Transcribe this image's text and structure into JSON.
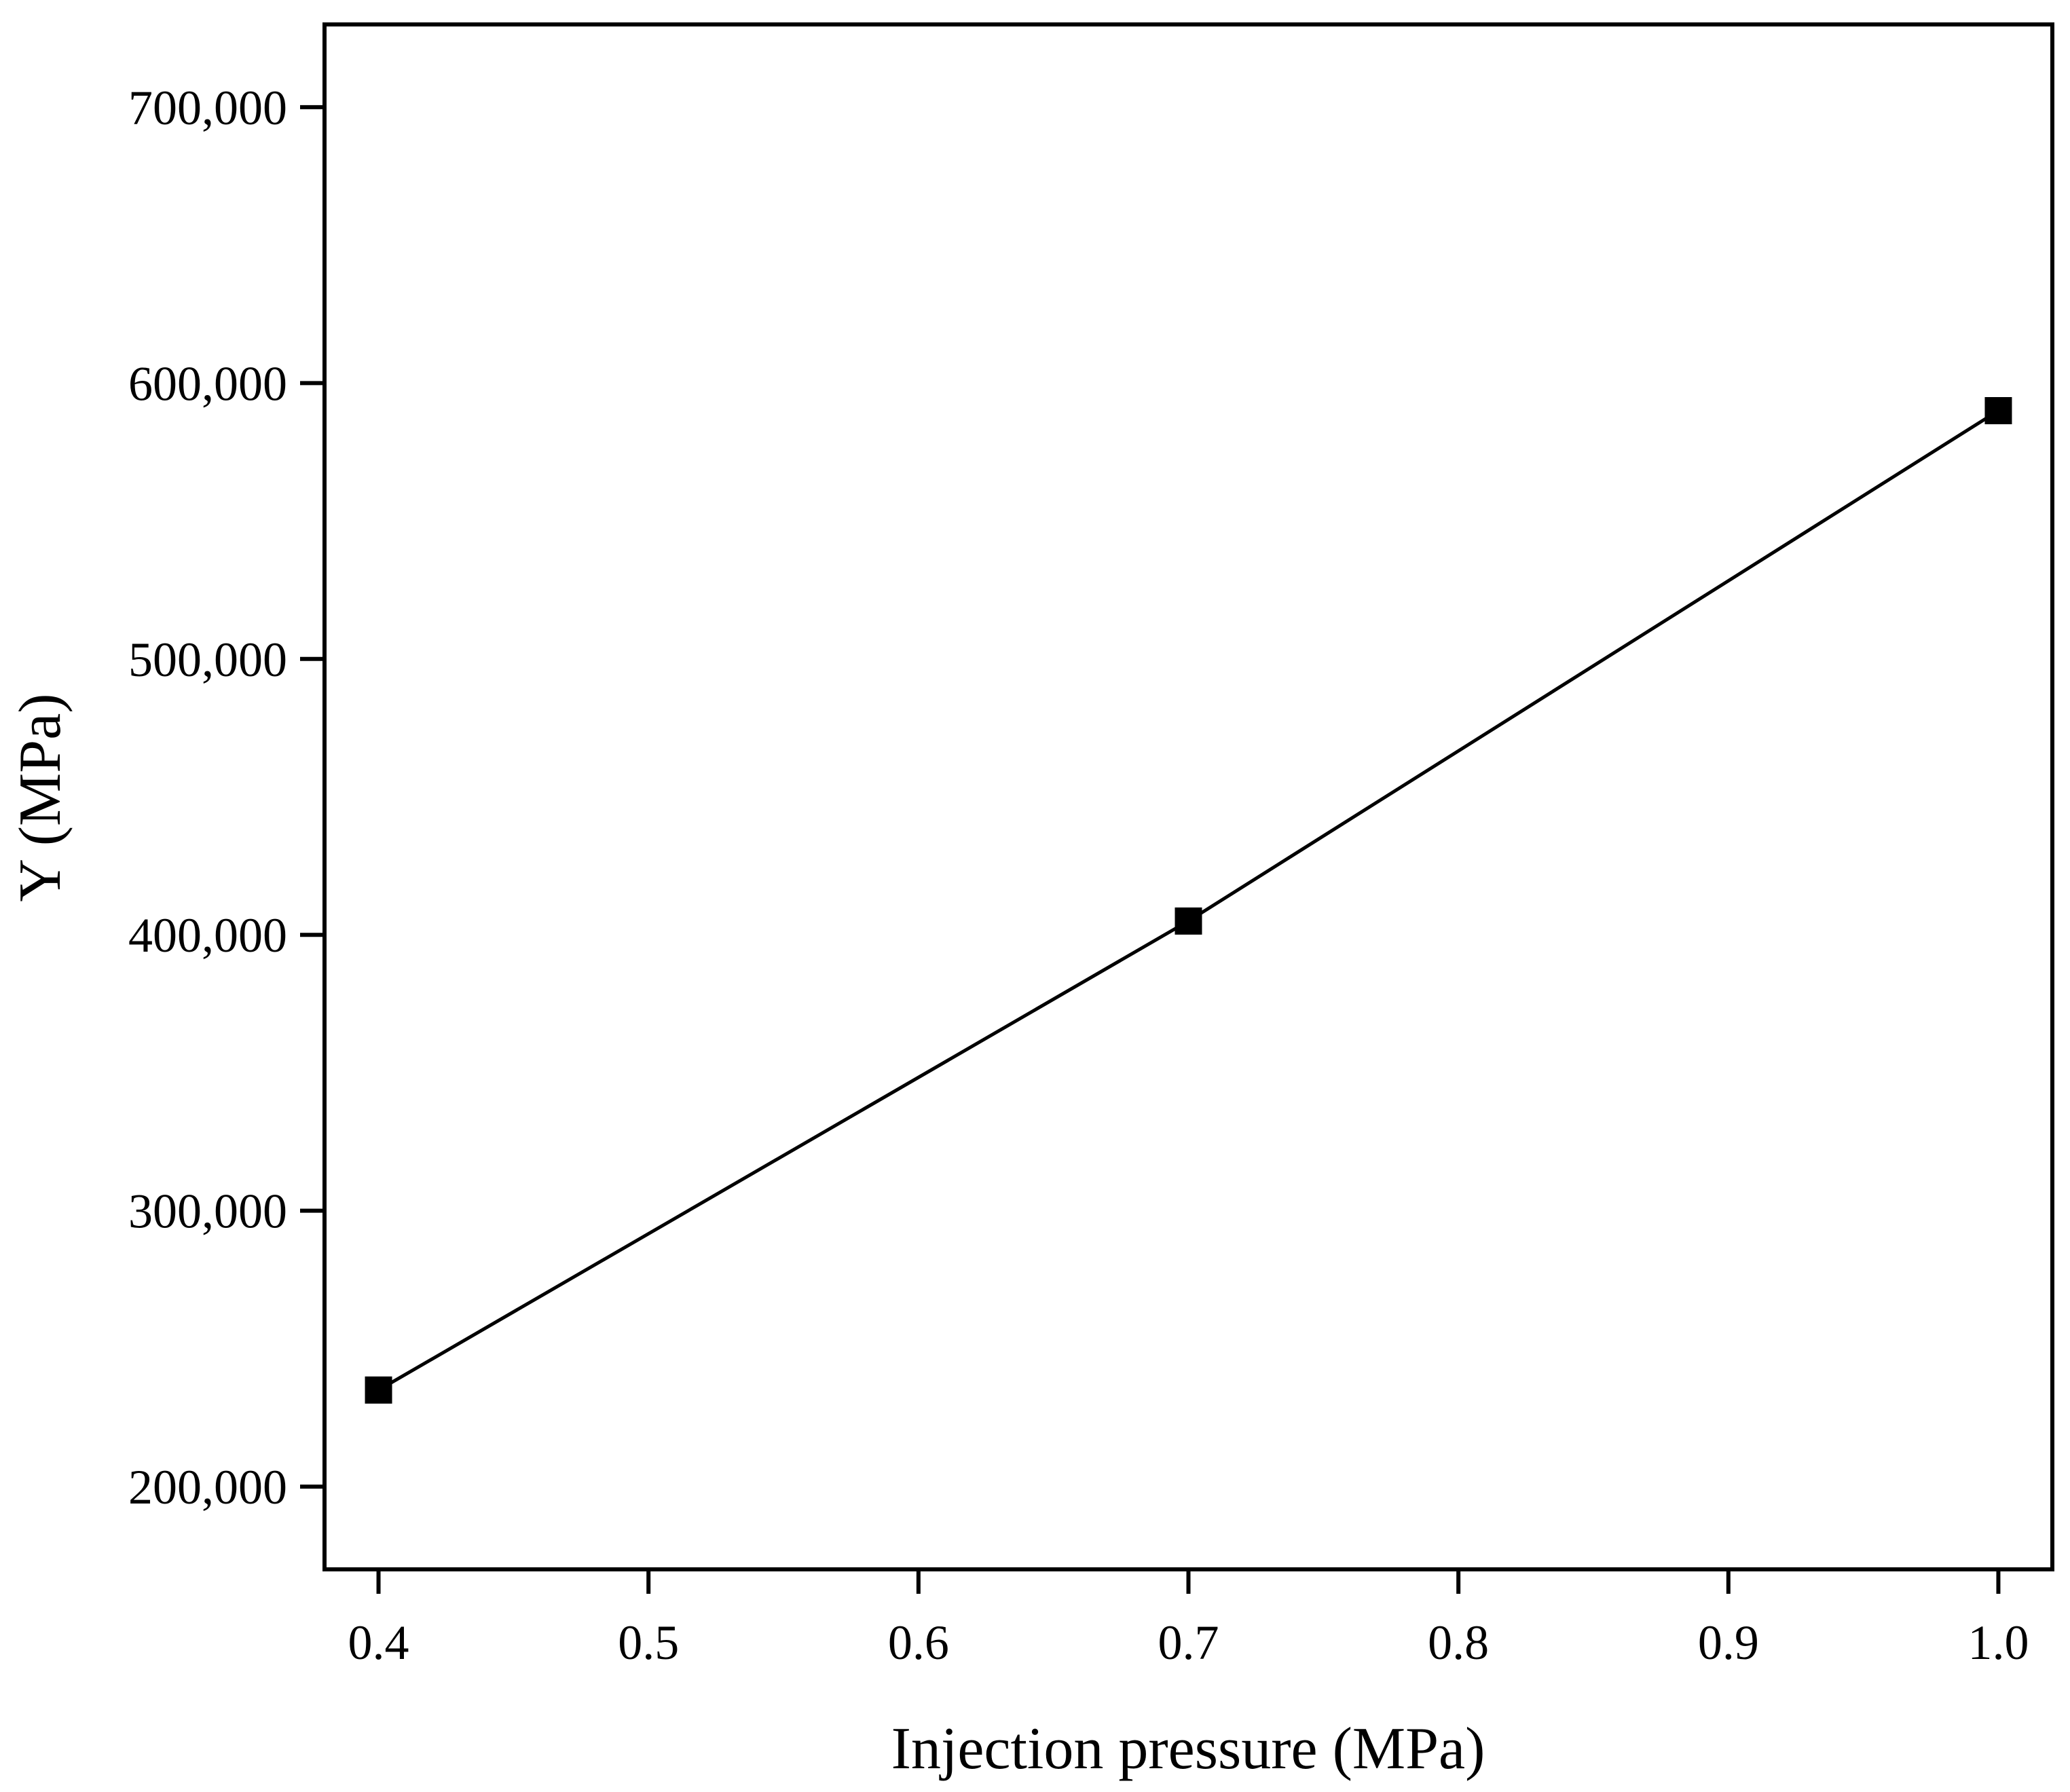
{
  "chart_data": {
    "type": "line",
    "title": "",
    "xlabel": "Injection pressure (MPa)",
    "ylabel": "Y (MPa)",
    "xlim": [
      0.38,
      1.02
    ],
    "ylim": [
      170000,
      730000
    ],
    "xticks": [
      0.4,
      0.5,
      0.6,
      0.7,
      0.8,
      0.9,
      1.0
    ],
    "xtick_labels": [
      "0.4",
      "0.5",
      "0.6",
      "0.7",
      "0.8",
      "0.9",
      "1.0"
    ],
    "yticks": [
      200000,
      300000,
      400000,
      500000,
      600000,
      700000
    ],
    "ytick_labels": [
      "200,000",
      "300,000",
      "400,000",
      "500,000",
      "600,000",
      "700,000"
    ],
    "grid": false,
    "series": [
      {
        "name": "Y",
        "marker": "square",
        "color": "#000000",
        "x": [
          0.4,
          0.7,
          1.0
        ],
        "y": [
          235000,
          405000,
          590000
        ]
      }
    ]
  }
}
